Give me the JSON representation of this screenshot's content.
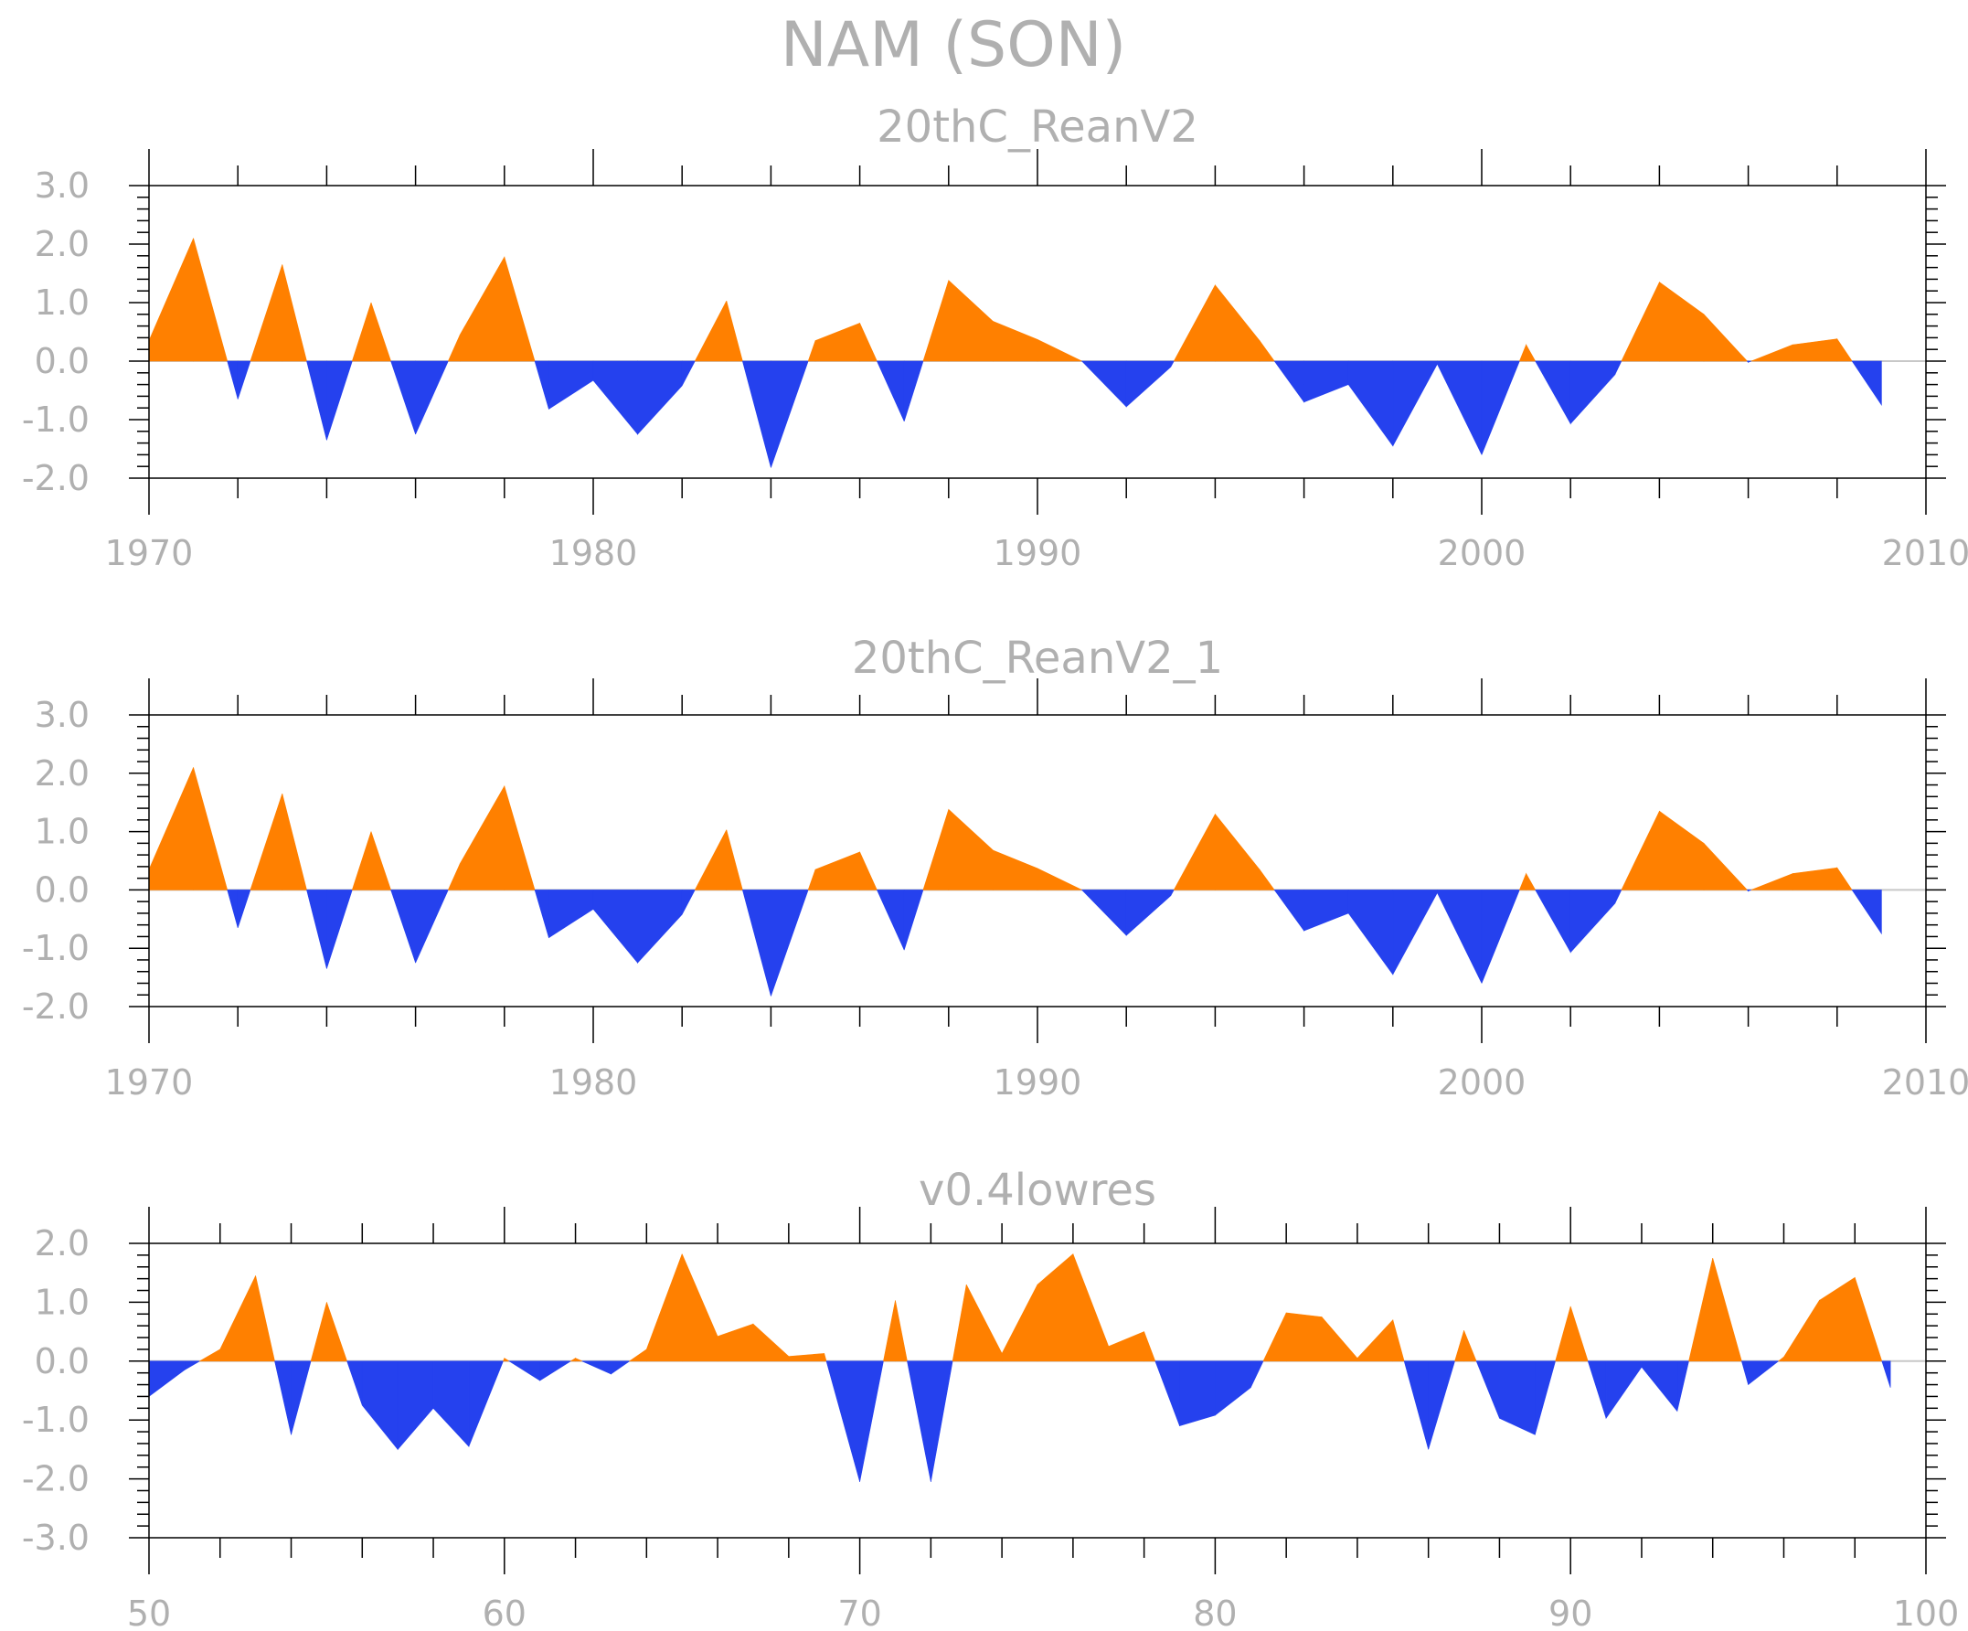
{
  "title": "NAM (SON)",
  "colors": {
    "positive": "#ff8000",
    "negative": "#2541ee",
    "text": "#b0b0b0",
    "frame": "#000000",
    "zero_line": "#c8c8c8"
  },
  "chart_data": [
    {
      "type": "area",
      "title": "20thC_ReanV2",
      "xlim": [
        1970,
        2010
      ],
      "ylim": [
        -2.0,
        3.0
      ],
      "x_ticks": [
        1970,
        1980,
        1990,
        2000,
        2010
      ],
      "x_tick_labels": [
        "1970",
        "1980",
        "1990",
        "2000",
        "2010"
      ],
      "y_ticks": [
        3.0,
        2.0,
        1.0,
        0.0,
        -1.0,
        -2.0
      ],
      "y_tick_labels": [
        "3.0",
        "2.0",
        "1.0",
        "0.0",
        "-1.0",
        "-2.0"
      ],
      "x": [
        1970,
        1971,
        1972,
        1973,
        1974,
        1975,
        1976,
        1977,
        1978,
        1979,
        1980,
        1981,
        1982,
        1983,
        1984,
        1985,
        1986,
        1987,
        1988,
        1989,
        1990,
        1991,
        1992,
        1993,
        1994,
        1995,
        1996,
        1997,
        1998,
        1999,
        2000,
        2001,
        2002,
        2003,
        2004,
        2005,
        2006,
        2007,
        2008,
        2009
      ],
      "values": [
        0.35,
        2.1,
        -0.65,
        1.65,
        -1.35,
        1.0,
        -1.25,
        0.45,
        1.78,
        -0.82,
        -0.33,
        -1.25,
        -0.42,
        1.03,
        -1.82,
        0.35,
        0.65,
        -1.03,
        1.38,
        0.68,
        0.37,
        0.0,
        -0.78,
        -0.1,
        1.3,
        0.35,
        -0.7,
        -0.4,
        -1.45,
        -0.05,
        -1.6,
        0.28,
        -1.07,
        -0.23,
        1.35,
        0.8,
        -0.02,
        0.28,
        0.38,
        -0.75
      ]
    },
    {
      "type": "area",
      "title": "20thC_ReanV2_1",
      "xlim": [
        1970,
        2010
      ],
      "ylim": [
        -2.0,
        3.0
      ],
      "x_ticks": [
        1970,
        1980,
        1990,
        2000,
        2010
      ],
      "x_tick_labels": [
        "1970",
        "1980",
        "1990",
        "2000",
        "2010"
      ],
      "y_ticks": [
        3.0,
        2.0,
        1.0,
        0.0,
        -1.0,
        -2.0
      ],
      "y_tick_labels": [
        "3.0",
        "2.0",
        "1.0",
        "0.0",
        "-1.0",
        "-2.0"
      ],
      "x": [
        1970,
        1971,
        1972,
        1973,
        1974,
        1975,
        1976,
        1977,
        1978,
        1979,
        1980,
        1981,
        1982,
        1983,
        1984,
        1985,
        1986,
        1987,
        1988,
        1989,
        1990,
        1991,
        1992,
        1993,
        1994,
        1995,
        1996,
        1997,
        1998,
        1999,
        2000,
        2001,
        2002,
        2003,
        2004,
        2005,
        2006,
        2007,
        2008,
        2009
      ],
      "values": [
        0.35,
        2.1,
        -0.65,
        1.65,
        -1.35,
        1.0,
        -1.25,
        0.45,
        1.78,
        -0.82,
        -0.33,
        -1.25,
        -0.42,
        1.03,
        -1.82,
        0.35,
        0.65,
        -1.03,
        1.38,
        0.68,
        0.37,
        0.0,
        -0.78,
        -0.1,
        1.3,
        0.35,
        -0.7,
        -0.4,
        -1.45,
        -0.05,
        -1.6,
        0.28,
        -1.07,
        -0.23,
        1.35,
        0.8,
        -0.02,
        0.28,
        0.38,
        -0.75
      ]
    },
    {
      "type": "area",
      "title": "v0.4lowres",
      "xlim": [
        50,
        100
      ],
      "ylim": [
        -3.0,
        2.0
      ],
      "x_ticks": [
        50,
        60,
        70,
        80,
        90,
        100
      ],
      "x_tick_labels": [
        "50",
        "60",
        "70",
        "80",
        "90",
        "100"
      ],
      "y_ticks": [
        2.0,
        1.0,
        0.0,
        -1.0,
        -2.0,
        -3.0
      ],
      "y_tick_labels": [
        "2.0",
        "1.0",
        "0.0",
        "-1.0",
        "-2.0",
        "-3.0"
      ],
      "x": [
        50,
        51,
        52,
        53,
        54,
        55,
        56,
        57,
        58,
        59,
        60,
        61,
        62,
        63,
        64,
        65,
        66,
        67,
        68,
        69,
        70,
        71,
        72,
        73,
        74,
        75,
        76,
        77,
        78,
        79,
        80,
        81,
        82,
        83,
        84,
        85,
        86,
        87,
        88,
        89,
        90,
        91,
        92,
        93,
        94,
        95,
        96,
        97,
        98,
        99
      ],
      "values": [
        -0.6,
        -0.15,
        0.2,
        1.45,
        -1.25,
        1.0,
        -0.75,
        -1.5,
        -0.8,
        -1.45,
        0.05,
        -0.33,
        0.05,
        -0.22,
        0.2,
        1.82,
        0.42,
        0.63,
        0.08,
        0.13,
        -2.05,
        1.03,
        -2.05,
        1.3,
        0.13,
        1.3,
        1.82,
        0.25,
        0.5,
        -1.1,
        -0.92,
        -0.45,
        0.82,
        0.75,
        0.05,
        0.7,
        -1.5,
        0.52,
        -0.97,
        -1.25,
        0.93,
        -0.97,
        -0.1,
        -0.85,
        1.75,
        -0.4,
        0.07,
        1.03,
        1.42,
        -0.45
      ]
    }
  ]
}
